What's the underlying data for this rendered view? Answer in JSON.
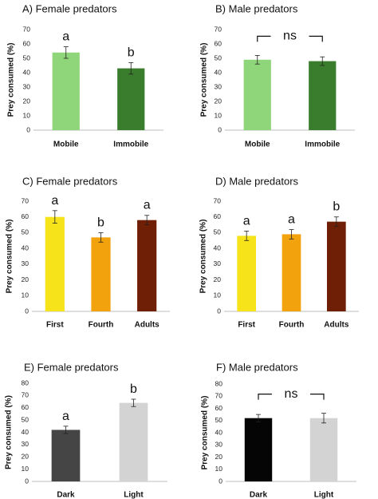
{
  "chart_data": [
    {
      "type": "bar",
      "title": "A) Female predators",
      "ylabel": "Prey consumed (%)",
      "xlabel": "",
      "ylim": [
        0,
        70
      ],
      "yticks": [
        0,
        10,
        20,
        30,
        40,
        50,
        60,
        70
      ],
      "categories": [
        "Mobile",
        "Immobile"
      ],
      "values": [
        54,
        43
      ],
      "errors": [
        4,
        4
      ],
      "colors": [
        "#8fd67a",
        "#3a7d2c"
      ],
      "significance": {
        "type": "letters",
        "labels": [
          "a",
          "b"
        ]
      }
    },
    {
      "type": "bar",
      "title": "B) Male predators",
      "ylabel": "Prey consumed (%)",
      "xlabel": "",
      "ylim": [
        0,
        70
      ],
      "yticks": [
        0,
        10,
        20,
        30,
        40,
        50,
        60,
        70
      ],
      "categories": [
        "Mobile",
        "Immobile"
      ],
      "values": [
        49,
        48
      ],
      "errors": [
        3,
        3
      ],
      "colors": [
        "#8fd67a",
        "#3a7d2c"
      ],
      "significance": {
        "type": "bracket",
        "label": "ns"
      }
    },
    {
      "type": "bar",
      "title": "C) Female predators",
      "ylabel": "Prey consumed (%)",
      "xlabel": "",
      "ylim": [
        0,
        70
      ],
      "yticks": [
        0,
        10,
        20,
        30,
        40,
        50,
        60,
        70
      ],
      "categories": [
        "First",
        "Fourth",
        "Adults"
      ],
      "values": [
        60,
        47,
        58
      ],
      "errors": [
        4,
        3,
        3
      ],
      "colors": [
        "#f7e31a",
        "#f2a20c",
        "#6e1f05"
      ],
      "significance": {
        "type": "letters",
        "labels": [
          "a",
          "b",
          "a"
        ]
      }
    },
    {
      "type": "bar",
      "title": "D) Male predators",
      "ylabel": "Prey consumed (%)",
      "xlabel": "",
      "ylim": [
        0,
        70
      ],
      "yticks": [
        0,
        10,
        20,
        30,
        40,
        50,
        60,
        70
      ],
      "categories": [
        "First",
        "Fourth",
        "Adults"
      ],
      "values": [
        48,
        49,
        57
      ],
      "errors": [
        3,
        3,
        3
      ],
      "colors": [
        "#f7e31a",
        "#f2a20c",
        "#6e1f05"
      ],
      "significance": {
        "type": "letters",
        "labels": [
          "a",
          "a",
          "b"
        ]
      }
    },
    {
      "type": "bar",
      "title": "E) Female predators",
      "ylabel": "Prey consumed (%)",
      "xlabel": "",
      "ylim": [
        0,
        80
      ],
      "yticks": [
        0,
        10,
        20,
        30,
        40,
        50,
        60,
        70,
        80
      ],
      "categories": [
        "Dark",
        "Light"
      ],
      "values": [
        42,
        64
      ],
      "errors": [
        3,
        3
      ],
      "colors": [
        "#454545",
        "#d3d3d3"
      ],
      "significance": {
        "type": "letters",
        "labels": [
          "a",
          "b"
        ]
      }
    },
    {
      "type": "bar",
      "title": "F) Male predators",
      "ylabel": "Prey consumed (%)",
      "xlabel": "",
      "ylim": [
        0,
        80
      ],
      "yticks": [
        0,
        10,
        20,
        30,
        40,
        50,
        60,
        70,
        80
      ],
      "categories": [
        "Dark",
        "Light"
      ],
      "values": [
        52,
        52
      ],
      "errors": [
        3,
        4
      ],
      "colors": [
        "#050505",
        "#d3d3d3"
      ],
      "significance": {
        "type": "bracket",
        "label": "ns"
      }
    }
  ]
}
